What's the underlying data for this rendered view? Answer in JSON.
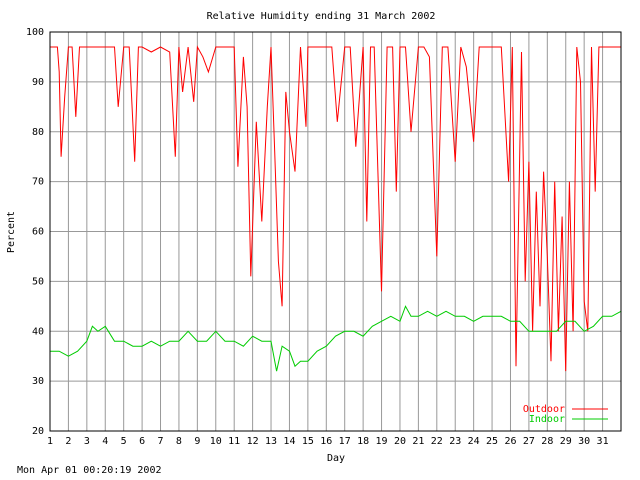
{
  "chart_data": {
    "type": "line",
    "title": "Relative Humidity ending 31 March 2002",
    "xlabel": "Day",
    "ylabel": "Percent",
    "xlim": [
      1,
      32
    ],
    "ylim": [
      20,
      100
    ],
    "x_ticks": [
      1,
      2,
      3,
      4,
      5,
      6,
      7,
      8,
      9,
      10,
      11,
      12,
      13,
      14,
      15,
      16,
      17,
      18,
      19,
      20,
      21,
      22,
      23,
      24,
      25,
      26,
      27,
      28,
      29,
      30,
      31
    ],
    "y_ticks": [
      20,
      30,
      40,
      50,
      60,
      70,
      80,
      90,
      100
    ],
    "grid": true,
    "legend_position": "bottom-right",
    "series": [
      {
        "name": "Outdoor",
        "color": "#ff0000",
        "x": [
          1,
          1.4,
          1.5,
          1.6,
          1.8,
          2,
          2.2,
          2.4,
          2.6,
          2.8,
          3,
          3.5,
          4,
          4.5,
          4.7,
          5,
          5.3,
          5.6,
          5.8,
          6,
          6.5,
          7,
          7.5,
          7.8,
          8,
          8.2,
          8.5,
          8.8,
          9,
          9.3,
          9.6,
          10,
          10.3,
          10.6,
          11,
          11.2,
          11.5,
          11.7,
          11.9,
          12.2,
          12.5,
          12.8,
          13,
          13.2,
          13.4,
          13.6,
          13.8,
          14,
          14.3,
          14.6,
          14.9,
          15,
          15.3,
          15.6,
          16,
          16.3,
          16.6,
          17,
          17.3,
          17.6,
          18,
          18.2,
          18.4,
          18.6,
          18.8,
          19,
          19.3,
          19.6,
          19.8,
          20,
          20.3,
          20.6,
          21,
          21.3,
          21.6,
          22,
          22.3,
          22.6,
          23,
          23.3,
          23.6,
          24,
          24.3,
          24.6,
          25,
          25.5,
          25.9,
          26.1,
          26.3,
          26.6,
          26.8,
          27,
          27.2,
          27.4,
          27.6,
          27.8,
          28,
          28.2,
          28.4,
          28.6,
          28.8,
          29,
          29.2,
          29.4,
          29.6,
          29.8,
          30,
          30.2,
          30.4,
          30.6,
          30.8,
          31,
          31.2,
          31.4,
          31.6,
          31.8,
          32
        ],
        "values": [
          97,
          97,
          92,
          75,
          87,
          97,
          97,
          83,
          97,
          97,
          97,
          97,
          97,
          97,
          85,
          97,
          97,
          74,
          97,
          97,
          96,
          97,
          96,
          75,
          97,
          88,
          97,
          86,
          97,
          95,
          92,
          97,
          97,
          97,
          97,
          73,
          95,
          85,
          51,
          82,
          62,
          85,
          97,
          76,
          54,
          45,
          88,
          80,
          72,
          97,
          81,
          97,
          97,
          97,
          97,
          97,
          82,
          97,
          97,
          77,
          97,
          62,
          97,
          97,
          72,
          48,
          97,
          97,
          68,
          97,
          97,
          80,
          97,
          97,
          95,
          55,
          97,
          97,
          74,
          97,
          93,
          78,
          97,
          97,
          97,
          97,
          70,
          97,
          33,
          96,
          50,
          74,
          40,
          68,
          45,
          72,
          55,
          34,
          70,
          40,
          63,
          32,
          70,
          40,
          97,
          90,
          46,
          40,
          97,
          68,
          97,
          97,
          97,
          97,
          97,
          97,
          97
        ],
        "label": "Outdoor"
      },
      {
        "name": "Indoor",
        "color": "#00cc00",
        "x": [
          1,
          1.5,
          2,
          2.5,
          3,
          3.3,
          3.6,
          4,
          4.5,
          5,
          5.5,
          6,
          6.5,
          7,
          7.5,
          8,
          8.5,
          9,
          9.5,
          10,
          10.5,
          11,
          11.5,
          12,
          12.5,
          13,
          13.3,
          13.6,
          14,
          14.3,
          14.6,
          15,
          15.5,
          16,
          16.5,
          17,
          17.5,
          18,
          18.5,
          19,
          19.5,
          20,
          20.3,
          20.6,
          21,
          21.5,
          22,
          22.5,
          23,
          23.5,
          24,
          24.5,
          25,
          25.5,
          26,
          26.5,
          27,
          27.5,
          28,
          28.5,
          29,
          29.5,
          30,
          30.5,
          31,
          31.5,
          32
        ],
        "values": [
          36,
          36,
          35,
          36,
          38,
          41,
          40,
          41,
          38,
          38,
          37,
          37,
          38,
          37,
          38,
          38,
          40,
          38,
          38,
          40,
          38,
          38,
          37,
          39,
          38,
          38,
          32,
          37,
          36,
          33,
          34,
          34,
          36,
          37,
          39,
          40,
          40,
          39,
          41,
          42,
          43,
          42,
          45,
          43,
          43,
          44,
          43,
          44,
          43,
          43,
          42,
          43,
          43,
          43,
          42,
          42,
          40,
          40,
          40,
          40,
          42,
          42,
          40,
          41,
          43,
          43,
          44
        ]
      }
    ]
  },
  "footer_timestamp": "Mon Apr 01 00:20:19 2002"
}
